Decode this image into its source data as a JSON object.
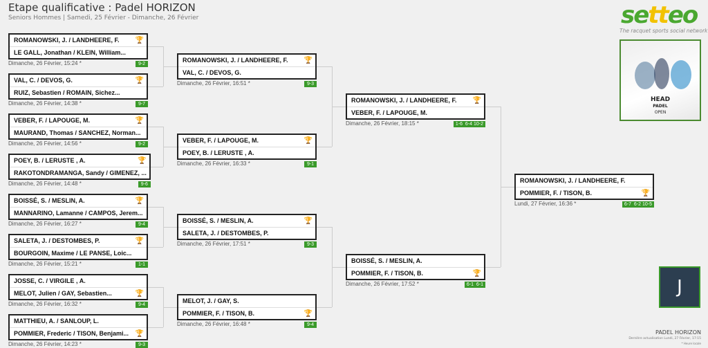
{
  "header": {
    "title": "Etape qualificative : Padel HORIZON",
    "subtitle": "Seniors Hommes | Samedi, 25 Février - Dimanche, 26 Février"
  },
  "brand": {
    "logo": "setteo",
    "tagline": "The racquet sports social network",
    "poster_text": [
      "HEAD",
      "PADEL",
      "OPEN"
    ]
  },
  "colors": {
    "score_badge": "#3a9a2a",
    "trophy": "#e6b422",
    "avatar_bg": "#2c3e50"
  },
  "rounds": [
    [
      {
        "teams": [
          "ROMANOWSKI, J. / LANDHEERE, F.",
          "LE GALL, Jonathan / KLEIN, William..."
        ],
        "winner": 0,
        "date": "Dimanche, 26 Février, 15:24 *",
        "score": "9-2"
      },
      {
        "teams": [
          "VAL, C. / DEVOS, G.",
          "RUIZ, Sebastien / ROMAIN, Sichez..."
        ],
        "winner": 0,
        "date": "Dimanche, 26 Février, 14:38 *",
        "score": "9-7"
      },
      {
        "teams": [
          "VEBER, F. / LAPOUGE, M.",
          "MAURAND, Thomas / SANCHEZ, Norman..."
        ],
        "winner": 0,
        "date": "Dimanche, 26 Février, 14:56 *",
        "score": "9-2"
      },
      {
        "teams": [
          "POEY, B. / LERUSTE , A.",
          "RAKOTONDRAMANGA, Sandy / GIMENEZ, ..."
        ],
        "winner": 0,
        "date": "Dimanche, 26 Février, 14:48 *",
        "score": "9-6"
      },
      {
        "teams": [
          "BOISSÉ, S. / MESLIN, A.",
          "MANNARINO, Lamanne / CAMPOS, Jerem..."
        ],
        "winner": 0,
        "date": "Dimanche, 26 Février, 16:27 *",
        "score": "9-4"
      },
      {
        "teams": [
          "SALETA, J. / DESTOMBES, P.",
          "BOURGOIN, Maxime / LE PANSE, Loic..."
        ],
        "winner": 0,
        "date": "Dimanche, 26 Février, 15:21 *",
        "score": "1-1"
      },
      {
        "teams": [
          "JOSSE, C. / VIRGILE , A.",
          "MELOT, Julien / GAY, Sebastien..."
        ],
        "winner": 1,
        "date": "Dimanche, 26 Février, 16:32 *",
        "score": "9-4"
      },
      {
        "teams": [
          "MATTHIEU, A. / SANLOUP, L.",
          "POMMIER, Frederic / TISON, Benjami..."
        ],
        "winner": 1,
        "date": "Dimanche, 26 Février, 14:23 *",
        "score": "9-3"
      }
    ],
    [
      {
        "teams": [
          "ROMANOWSKI, J. / LANDHEERE, F.",
          "VAL, C. / DEVOS, G."
        ],
        "winner": 0,
        "date": "Dimanche, 26 Février, 16:51 *",
        "score": "9-3"
      },
      {
        "teams": [
          "VEBER, F. / LAPOUGE, M.",
          "POEY, B. / LERUSTE , A."
        ],
        "winner": 0,
        "date": "Dimanche, 26 Février, 16:33 *",
        "score": "9-1"
      },
      {
        "teams": [
          "BOISSÉ, S. / MESLIN, A.",
          "SALETA, J. / DESTOMBES, P."
        ],
        "winner": 0,
        "date": "Dimanche, 26 Février, 17:51 *",
        "score": "9-3"
      },
      {
        "teams": [
          "MELOT, J. / GAY, S.",
          "POMMIER, F. / TISON, B."
        ],
        "winner": 1,
        "date": "Dimanche, 26 Février, 16:48 *",
        "score": "9-4"
      }
    ],
    [
      {
        "teams": [
          "ROMANOWSKI, J. / LANDHEERE, F.",
          "VEBER, F. / LAPOUGE, M."
        ],
        "winner": 0,
        "date": "Dimanche, 26 Février, 18:15 *",
        "score": "1-6  6-4 10-2"
      },
      {
        "teams": [
          "BOISSÉ, S. / MESLIN, A.",
          "POMMIER, F. / TISON, B."
        ],
        "winner": 1,
        "date": "Dimanche, 26 Février, 17:52 *",
        "score": "6-1  6-1"
      }
    ],
    [
      {
        "teams": [
          "ROMANOWSKI, J. / LANDHEERE, F.",
          "POMMIER, F. / TISON, B."
        ],
        "winner": 1,
        "date": "Lundi, 27 Février, 16:36 *",
        "score": "6-7  6-2 10-5"
      }
    ]
  ],
  "avatar": {
    "initial": "J"
  },
  "footer": {
    "club": "PADEL HORIZON",
    "updated": "Dernière actualisation Lundi, 27 Février, 17:15",
    "note": "* Heure locale"
  }
}
